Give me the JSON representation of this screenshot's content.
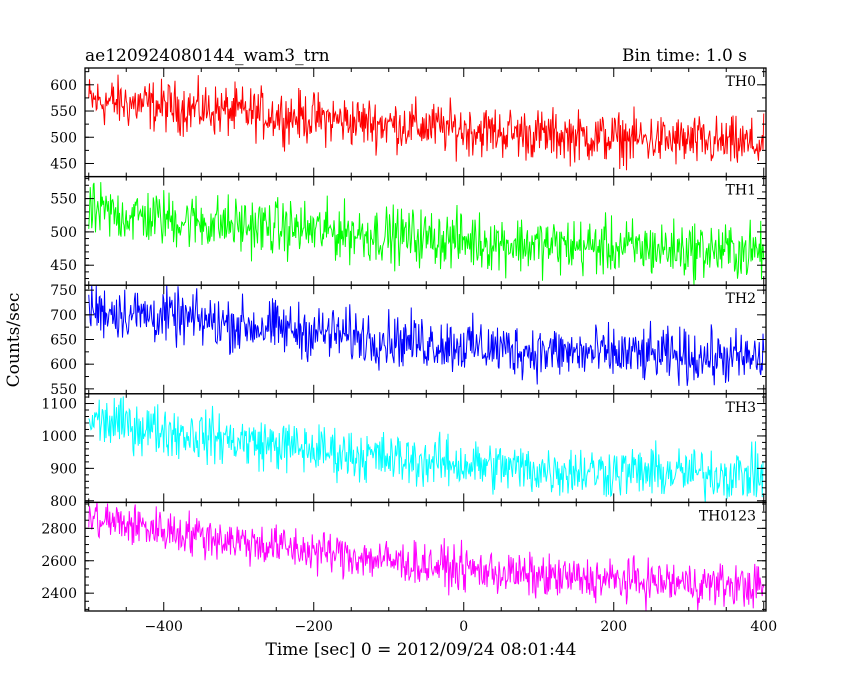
{
  "chart_data": {
    "type": "line",
    "title": "ae120924080144_wam3_trn",
    "subtitle": "Bin time: 1.0 s",
    "xlabel": "Time [sec] 0 = 2012/09/24 08:01:44",
    "ylabel": "Counts/sec",
    "xlim": [
      -505,
      403
    ],
    "xticks": [
      -400,
      -200,
      0,
      200,
      400
    ],
    "x_step": 1.0,
    "grid": false,
    "panels": [
      {
        "name": "TH0",
        "color": "#ff0000",
        "ylim": [
          425,
          632
        ],
        "yticks": [
          450,
          500,
          550,
          600
        ],
        "trend": [
          [
            -500,
            570
          ],
          [
            -300,
            548
          ],
          [
            -100,
            525
          ],
          [
            100,
            505
          ],
          [
            400,
            485
          ]
        ],
        "noise_amplitude": 40
      },
      {
        "name": "TH1",
        "color": "#00ff00",
        "ylim": [
          420,
          583
        ],
        "yticks": [
          450,
          500,
          550
        ],
        "trend": [
          [
            -500,
            530
          ],
          [
            -300,
            510
          ],
          [
            -100,
            495
          ],
          [
            100,
            480
          ],
          [
            400,
            470
          ]
        ],
        "noise_amplitude": 35
      },
      {
        "name": "TH2",
        "color": "#0000ff",
        "ylim": [
          540,
          760
        ],
        "yticks": [
          550,
          600,
          650,
          700,
          750
        ],
        "trend": [
          [
            -500,
            712
          ],
          [
            -300,
            680
          ],
          [
            -100,
            650
          ],
          [
            100,
            625
          ],
          [
            400,
            610
          ]
        ],
        "noise_amplitude": 45
      },
      {
        "name": "TH3",
        "color": "#00ffff",
        "ylim": [
          795,
          1130
        ],
        "yticks": [
          800,
          900,
          1000,
          1100
        ],
        "trend": [
          [
            -500,
            1050
          ],
          [
            -300,
            985
          ],
          [
            -100,
            930
          ],
          [
            100,
            895
          ],
          [
            400,
            880
          ]
        ],
        "noise_amplitude": 65
      },
      {
        "name": "TH0123",
        "color": "#ff00ff",
        "ylim": [
          2290,
          2960
        ],
        "yticks": [
          2400,
          2600,
          2800
        ],
        "trend": [
          [
            -500,
            2860
          ],
          [
            -300,
            2720
          ],
          [
            -100,
            2600
          ],
          [
            100,
            2500
          ],
          [
            400,
            2440
          ]
        ],
        "noise_amplitude": 110
      }
    ]
  }
}
